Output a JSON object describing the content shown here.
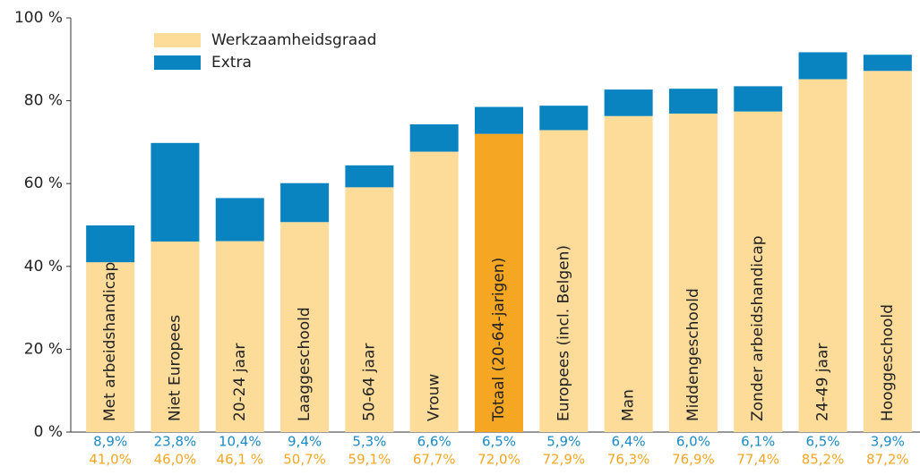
{
  "chart_data": {
    "type": "stacked-bar",
    "categories": [
      "Met arbeidshandicap",
      "Niet Europees",
      "20-24 jaar",
      "Laaggeschoold",
      "50-64 jaar",
      "Vrouw",
      "Totaal (20-64-jarigen)",
      "Europees (incl. Belgen)",
      "Man",
      "Middengeschoold",
      "Zonder arbeidshandicap",
      "24-49 jaar",
      "Hooggeschoold"
    ],
    "series": [
      {
        "name": "Werkzaamheidsgraad",
        "color": "#fddc9a",
        "colors": [
          "#fddc9a",
          "#fddc9a",
          "#fddc9a",
          "#fddc9a",
          "#fddc9a",
          "#fddc9a",
          "#f5a623",
          "#fddc9a",
          "#fddc9a",
          "#fddc9a",
          "#fddc9a",
          "#fddc9a",
          "#fddc9a"
        ],
        "label_color": "#f5a623",
        "values": [
          41.0,
          46.0,
          46.1,
          50.7,
          59.1,
          67.7,
          72.0,
          72.9,
          76.3,
          76.9,
          77.4,
          85.2,
          87.2
        ],
        "value_labels": [
          "41,0%",
          "46,0%",
          "46,1 %",
          "50,7%",
          "59,1%",
          "67,7%",
          "72,0%",
          "72,9%",
          "76,3%",
          "76,9%",
          "77,4%",
          "85,2%",
          "87,2%"
        ]
      },
      {
        "name": "Extra",
        "color": "#0a84c1",
        "label_color": "#1a8ac6",
        "values": [
          8.9,
          23.8,
          10.4,
          9.4,
          5.3,
          6.6,
          6.5,
          5.9,
          6.4,
          6.0,
          6.1,
          6.5,
          3.9
        ],
        "value_labels": [
          "8,9%",
          "23,8%",
          "10,4%",
          "9,4%",
          "5,3%",
          "6,6%",
          "6,5%",
          "5,9%",
          "6,4%",
          "6,0%",
          "6,1%",
          "6,5%",
          "3,9%"
        ]
      }
    ],
    "ylim": [
      0,
      100
    ],
    "yticks": [
      {
        "value": 0,
        "label": "0 %"
      },
      {
        "value": 20,
        "label": "20 %"
      },
      {
        "value": 40,
        "label": "40 %"
      },
      {
        "value": 60,
        "label": "60 %"
      },
      {
        "value": 80,
        "label": "80 %"
      },
      {
        "value": 100,
        "label": "100 %"
      }
    ],
    "legend": "top-left"
  }
}
